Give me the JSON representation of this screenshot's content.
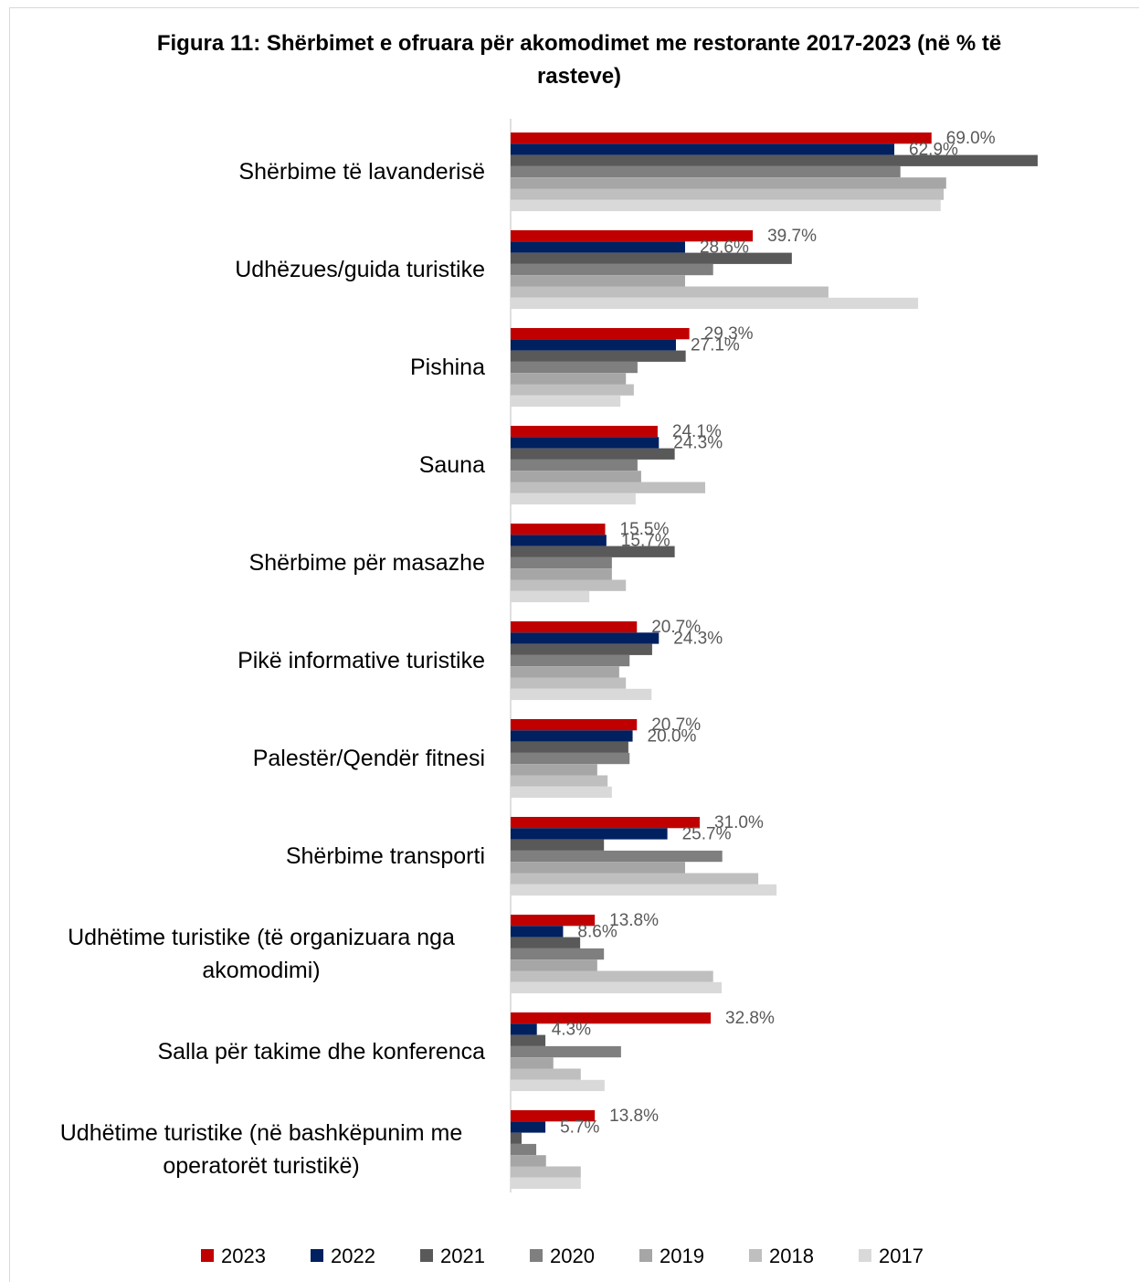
{
  "chart_data": {
    "type": "barh",
    "title": "Figura 11: Shërbimet e ofruara për akomodimet me restorante  2017-2023  (në % të rasteve)",
    "categories": [
      "Shërbime të lavanderisë",
      "Udhëzues/guida turistike",
      "Pishina",
      "Sauna",
      "Shërbime për masazhe",
      "Pikë informative turistike",
      "Palestër/Qendër fitnesi",
      "Shërbime transporti",
      "Udhëtime turistike  (të organizuara nga akomodimi)",
      "Salla për takime dhe konferenca",
      "Udhëtime turistike  (në bashkëpunim me operatorët turistikë)"
    ],
    "series": [
      {
        "name": "2023",
        "color": "#c00000",
        "values": [
          69.0,
          39.7,
          29.3,
          24.1,
          15.5,
          20.7,
          20.7,
          31.0,
          13.8,
          32.8,
          13.8
        ],
        "value_labels": [
          "69.0%",
          "39.7%",
          "29.3%",
          "24.1%",
          "15.5%",
          "20.7%",
          "20.7%",
          "31.0%",
          "13.8%",
          "32.8%",
          "13.8%"
        ]
      },
      {
        "name": "2022",
        "color": "#002060",
        "values": [
          62.9,
          28.6,
          27.1,
          24.3,
          15.7,
          24.3,
          20.0,
          25.7,
          8.6,
          4.3,
          5.7
        ],
        "value_labels": [
          "62.9%",
          "28.6%",
          "27.1%",
          "24.3%",
          "15.7%",
          "24.3%",
          "20.0%",
          "25.7%",
          "8.6%",
          "4.3%",
          "5.7%"
        ]
      },
      {
        "name": "2021",
        "color": "#595959",
        "values": [
          86.4,
          46.1,
          28.7,
          26.9,
          26.9,
          23.2,
          19.3,
          15.3,
          11.4,
          5.7,
          1.8
        ]
      },
      {
        "name": "2020",
        "color": "#7f7f7f",
        "values": [
          63.9,
          33.2,
          20.8,
          20.8,
          16.6,
          19.5,
          19.5,
          34.7,
          15.3,
          18.1,
          4.2
        ]
      },
      {
        "name": "2019",
        "color": "#a6a6a6",
        "values": [
          71.4,
          28.6,
          18.9,
          21.4,
          16.6,
          17.8,
          14.2,
          28.6,
          14.2,
          7.0,
          5.8
        ]
      },
      {
        "name": "2018",
        "color": "#bfbfbf",
        "values": [
          71.0,
          52.1,
          20.2,
          31.9,
          18.9,
          18.9,
          15.9,
          40.6,
          33.2,
          11.5,
          11.5
        ]
      },
      {
        "name": "2017",
        "color": "#d9d9d9",
        "values": [
          70.5,
          66.8,
          18.0,
          20.5,
          12.9,
          23.1,
          16.6,
          43.6,
          34.6,
          15.4,
          11.5
        ]
      }
    ],
    "xlim": [
      0,
      90
    ]
  }
}
